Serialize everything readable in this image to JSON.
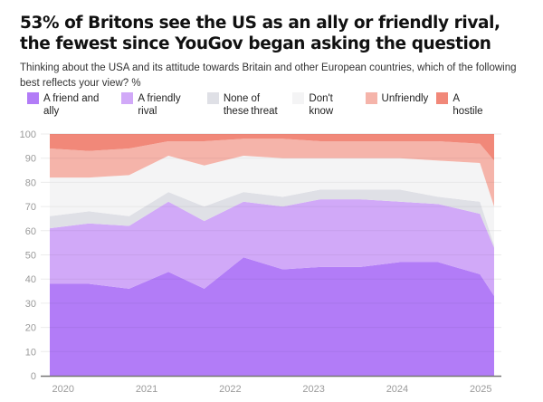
{
  "title": "53% of Britons see the US as an ally or friendly rival, the fewest since YouGov began asking the question",
  "subtitle": "Thinking about the USA and its attitude towards Britain and other European countries, which of the following best reflects your view? %",
  "chart_data": {
    "type": "area",
    "stacked": true,
    "title": "53% of Britons see the US as an ally or friendly rival, the fewest since YouGov began asking the question",
    "subtitle": "Thinking about the USA and its attitude towards Britain and other European countries, which of the following best reflects your view? %",
    "xlabel": "",
    "ylabel": "%",
    "x": [
      2019.84,
      2020.31,
      2020.79,
      2021.26,
      2021.69,
      2022.16,
      2022.63,
      2023.08,
      2023.56,
      2024.03,
      2024.49,
      2024.99,
      2025.16
    ],
    "xlim": [
      2019.84,
      2025.16
    ],
    "x_ticks": [
      2020,
      2021,
      2022,
      2023,
      2024,
      2025
    ],
    "x_tick_labels": [
      "2020",
      "2021",
      "2022",
      "2023",
      "2024",
      "2025"
    ],
    "ylim": [
      0,
      100
    ],
    "y_ticks": [
      0,
      10,
      20,
      30,
      40,
      50,
      60,
      70,
      80,
      90,
      100
    ],
    "y_tick_labels": [
      "0",
      "10",
      "20",
      "30",
      "40",
      "50",
      "60",
      "70",
      "80",
      "90",
      "100"
    ],
    "grid": true,
    "legend_position": "top",
    "series": [
      {
        "name": "A friend and ally",
        "color": "#b27cf7",
        "values": [
          38,
          38,
          36,
          43,
          36,
          49,
          44,
          45,
          45,
          47,
          47,
          42,
          33
        ]
      },
      {
        "name": "A friendly rival",
        "color": "#d1a9f8",
        "values": [
          23,
          25,
          26,
          29,
          28,
          23,
          26,
          28,
          28,
          25,
          24,
          25,
          20
        ]
      },
      {
        "name": "None of these",
        "color": "#dfe0e6",
        "values": [
          5,
          5,
          4,
          4,
          6,
          4,
          4,
          4,
          4,
          5,
          3,
          5,
          1
        ]
      },
      {
        "name": "Don't know",
        "color": "#f4f4f5",
        "values": [
          16,
          14,
          17,
          15,
          17,
          15,
          16,
          13,
          13,
          13,
          15,
          16,
          16
        ]
      },
      {
        "name": "Unfriendly",
        "color": "#f5b4aa",
        "values": [
          12,
          11,
          11,
          6,
          10,
          7,
          8,
          7,
          7,
          7,
          8,
          8,
          19
        ]
      },
      {
        "name": "A hostile threat",
        "color": "#f18879",
        "values": [
          6,
          7,
          6,
          3,
          3,
          2,
          2,
          3,
          3,
          3,
          3,
          4,
          11
        ]
      }
    ]
  },
  "legend": [
    {
      "label": "A friend and ally",
      "color": "#b27cf7"
    },
    {
      "label": "A friendly rival",
      "color": "#d1a9f8"
    },
    {
      "label": "None of these",
      "color": "#dfe0e6"
    },
    {
      "label": "Don't know",
      "color": "#f4f4f5"
    },
    {
      "label": "Unfriendly",
      "color": "#f5b4aa"
    },
    {
      "label": "A hostile threat",
      "color": "#f18879"
    }
  ]
}
